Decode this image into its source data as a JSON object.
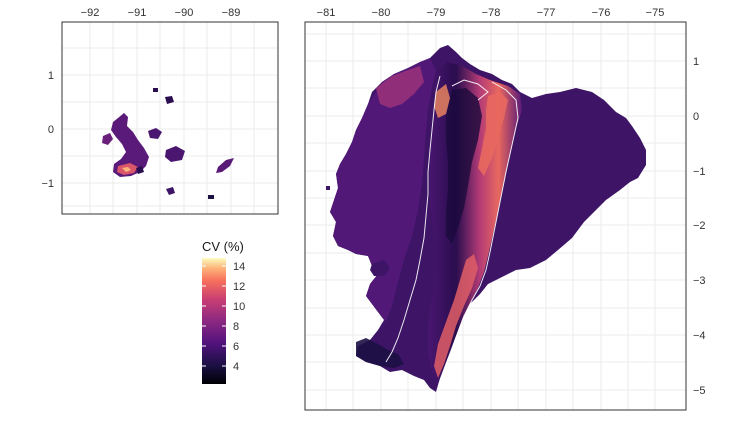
{
  "galapagos_panel": {
    "x_ticks": [
      "−92",
      "−91",
      "−90",
      "−89"
    ],
    "y_ticks": [
      "1",
      "0",
      "−1"
    ]
  },
  "mainland_panel": {
    "x_ticks": [
      "−81",
      "−80",
      "−79",
      "−78",
      "−77",
      "−76",
      "−75"
    ],
    "y_ticks": [
      "1",
      "0",
      "−1",
      "−2",
      "−3",
      "−4",
      "−5"
    ]
  },
  "legend": {
    "title": "CV (%)",
    "labels": [
      "14",
      "12",
      "10",
      "8",
      "6",
      "4"
    ],
    "range": [
      3,
      15
    ],
    "colors": {
      "low": "#000004",
      "mid_low": "#3b0f70",
      "mid": "#8c2981",
      "mid_high": "#de4968",
      "high": "#fe9f6d",
      "top": "#fcfdbf"
    }
  },
  "colors": {
    "grid": "#ebebeb",
    "frame": "#333333",
    "region_base": "#3d1466",
    "boundary": "#ffffff"
  }
}
